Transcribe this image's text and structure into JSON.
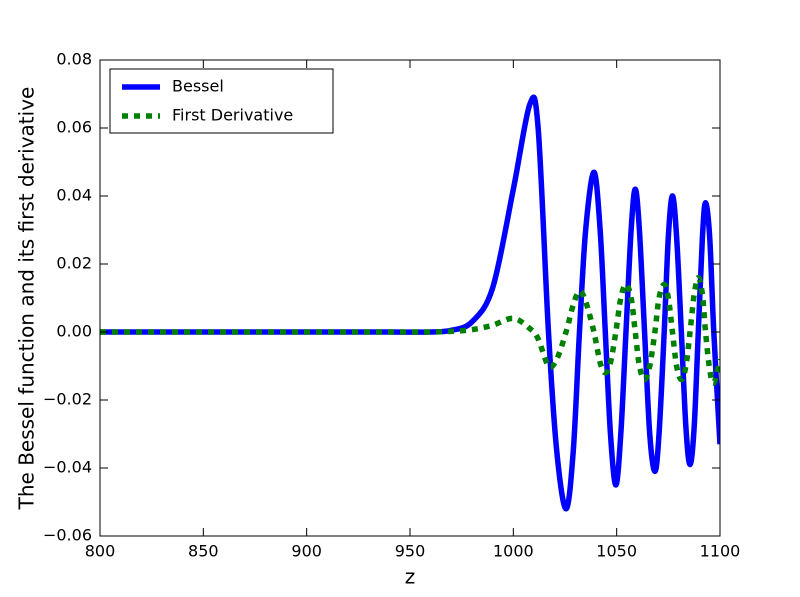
{
  "chart_data": {
    "type": "line",
    "x_label": "z",
    "y_label": "The Bessel function and its first derivative",
    "x": [
      800,
      820,
      840,
      860,
      880,
      900,
      920,
      940,
      960,
      970,
      980,
      990,
      1000,
      1008,
      1012,
      1017,
      1021,
      1025.5,
      1029,
      1032,
      1035,
      1039,
      1042,
      1044.5,
      1047,
      1049.6,
      1052,
      1054.5,
      1057,
      1059,
      1061,
      1063.5,
      1066,
      1068.5,
      1070.5,
      1073,
      1075,
      1077,
      1079,
      1081.3,
      1083.5,
      1085.5,
      1087.5,
      1089.5,
      1091.5,
      1093,
      1095,
      1097,
      1100
    ],
    "series": [
      {
        "name": "Bessel",
        "color": "#0000ff",
        "style": "solid",
        "values": [
          0,
          0,
          0,
          0,
          0,
          0,
          0,
          0,
          0,
          0.0005,
          0.003,
          0.013,
          0.042,
          0.067,
          0.06,
          0,
          -0.035,
          -0.052,
          -0.035,
          0,
          0.03,
          0.047,
          0.03,
          0,
          -0.03,
          -0.045,
          -0.03,
          0,
          0.03,
          0.042,
          0.03,
          0,
          -0.03,
          -0.041,
          -0.03,
          0,
          0.028,
          0.04,
          0.028,
          0,
          -0.028,
          -0.039,
          -0.028,
          0,
          0.028,
          0.038,
          0.028,
          0,
          -0.033
        ]
      },
      {
        "name": "First Derivative",
        "color": "#008000",
        "style": "dotted",
        "values": [
          0,
          0,
          0,
          0,
          0,
          0,
          0,
          0,
          0,
          0.0002,
          0.0007,
          0.002,
          0.004,
          0.001,
          -0.002,
          -0.01,
          -0.008,
          0,
          0.008,
          0.012,
          0.009,
          0,
          -0.009,
          -0.012,
          -0.009,
          0,
          0.01,
          0.014,
          0.01,
          0,
          -0.01,
          -0.014,
          -0.01,
          0,
          0.01,
          0.014,
          0.01,
          0,
          -0.01,
          -0.014,
          -0.01,
          0,
          0.011,
          0.016,
          0.011,
          0,
          -0.011,
          -0.015,
          -0.008
        ]
      }
    ],
    "xlim": [
      800,
      1100
    ],
    "xticks": [
      800,
      850,
      900,
      950,
      1000,
      1050,
      1100
    ],
    "ylim": [
      -0.06,
      0.08
    ],
    "yticks": [
      {
        "value": -0.06,
        "label": "−0.06"
      },
      {
        "value": -0.04,
        "label": "−0.04"
      },
      {
        "value": -0.02,
        "label": "−0.02"
      },
      {
        "value": 0,
        "label": "0.00"
      },
      0.02,
      0.04,
      0.06,
      0.08
    ],
    "grid": false,
    "legend": "upper-left"
  }
}
